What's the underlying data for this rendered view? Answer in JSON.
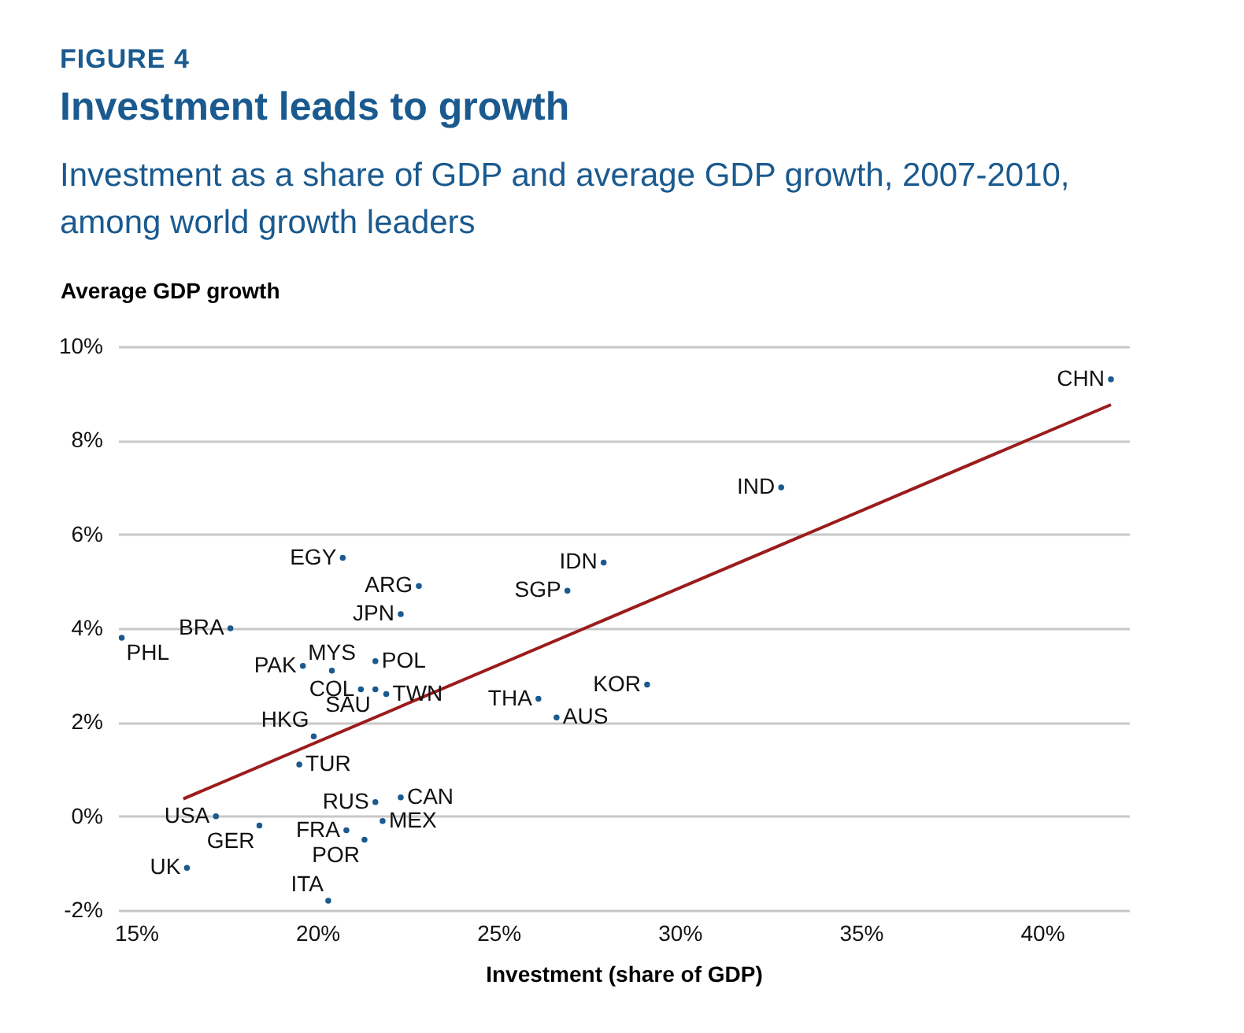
{
  "chart_data": {
    "type": "scatter",
    "title": "Investment leads to growth",
    "subtitle": "Investment as a share of GDP and average GDP growth, 2007-2010, among world growth leaders",
    "annotations": [
      "FIGURE 4",
      {
        "text": "CHN",
        "x": 41.9,
        "y": 9.3
      },
      {
        "text": "IND",
        "x": 32.8,
        "y": 7.0
      },
      {
        "text": "IDN",
        "x": 27.9,
        "y": 5.4
      },
      {
        "text": "SGP",
        "x": 26.9,
        "y": 4.8
      },
      {
        "text": "KOR",
        "x": 29.1,
        "y": 2.8
      },
      {
        "text": "THA",
        "x": 26.1,
        "y": 2.5
      },
      {
        "text": "AUS",
        "x": 26.6,
        "y": 2.1
      },
      {
        "text": "EGY",
        "x": 20.7,
        "y": 5.5
      },
      {
        "text": "ARG",
        "x": 22.8,
        "y": 4.9
      },
      {
        "text": "JPN",
        "x": 22.3,
        "y": 4.3
      },
      {
        "text": "BRA",
        "x": 17.6,
        "y": 4.0
      },
      {
        "text": "PHL",
        "x": 14.6,
        "y": 3.8
      },
      {
        "text": "PAK",
        "x": 19.6,
        "y": 3.2
      },
      {
        "text": "MYS",
        "x": 20.4,
        "y": 3.1
      },
      {
        "text": "POL",
        "x": 21.6,
        "y": 3.3
      },
      {
        "text": "COL",
        "x": 21.2,
        "y": 2.7
      },
      {
        "text": "SAU",
        "x": 21.6,
        "y": 2.7
      },
      {
        "text": "TWN",
        "x": 21.9,
        "y": 2.6
      },
      {
        "text": "HKG",
        "x": 19.9,
        "y": 1.7
      },
      {
        "text": "TUR",
        "x": 19.5,
        "y": 1.1
      },
      {
        "text": "RUS",
        "x": 21.6,
        "y": 0.3
      },
      {
        "text": "CAN",
        "x": 22.3,
        "y": 0.4
      },
      {
        "text": "MEX",
        "x": 21.8,
        "y": -0.1
      },
      {
        "text": "USA",
        "x": 17.2,
        "y": 0.0
      },
      {
        "text": "GER",
        "x": 18.4,
        "y": -0.2
      },
      {
        "text": "FRA",
        "x": 20.8,
        "y": -0.3
      },
      {
        "text": "POR",
        "x": 21.3,
        "y": -0.5
      },
      {
        "text": "UK",
        "x": 16.4,
        "y": -1.1
      },
      {
        "text": "ITA",
        "x": 20.3,
        "y": -1.8
      }
    ],
    "xlabel": "Investment (share of GDP)",
    "ylabel": "Average GDP growth",
    "series": [
      {
        "type": "scatter",
        "color": "#1a5a8f",
        "x": [
          41.9,
          32.8,
          27.9,
          26.9,
          29.1,
          26.1,
          26.6,
          20.7,
          22.8,
          22.3,
          17.6,
          14.6,
          19.6,
          20.4,
          21.6,
          21.2,
          21.6,
          21.9,
          19.9,
          19.5,
          21.6,
          22.3,
          21.8,
          17.2,
          18.4,
          20.8,
          21.3,
          16.4,
          20.3
        ],
        "values": [
          9.3,
          7.0,
          5.4,
          4.8,
          2.8,
          2.5,
          2.1,
          5.5,
          4.9,
          4.3,
          4.0,
          3.8,
          3.2,
          3.1,
          3.3,
          2.7,
          2.7,
          2.6,
          1.7,
          1.1,
          0.3,
          0.4,
          -0.1,
          0.0,
          -0.2,
          -0.3,
          -0.5,
          -1.1,
          -1.8
        ]
      },
      {
        "type": "line",
        "marker": "none",
        "color": "#9b1c1c",
        "x": [
          16.3,
          41.9
        ],
        "values": [
          0.37,
          8.76
        ]
      }
    ],
    "xlim": [
      14.5,
      42.4
    ],
    "ylim": [
      -2,
      10
    ],
    "xticks": [
      {
        "value": 15,
        "label": "15%"
      },
      {
        "value": 20,
        "label": "20%"
      },
      {
        "value": 25,
        "label": "25%"
      },
      {
        "value": 30,
        "label": "30%"
      },
      {
        "value": 35,
        "label": "35%"
      },
      {
        "value": 40,
        "label": "40%"
      }
    ],
    "yticks": [
      {
        "value": -2,
        "label": "-2%"
      },
      {
        "value": 0,
        "label": "0%"
      },
      {
        "value": 2,
        "label": "2%"
      },
      {
        "value": 4,
        "label": "4%"
      },
      {
        "value": 6,
        "label": "6%"
      },
      {
        "value": 8,
        "label": "8%"
      },
      {
        "value": 10,
        "label": "10%"
      }
    ],
    "grid": "y",
    "marker": "circle"
  }
}
